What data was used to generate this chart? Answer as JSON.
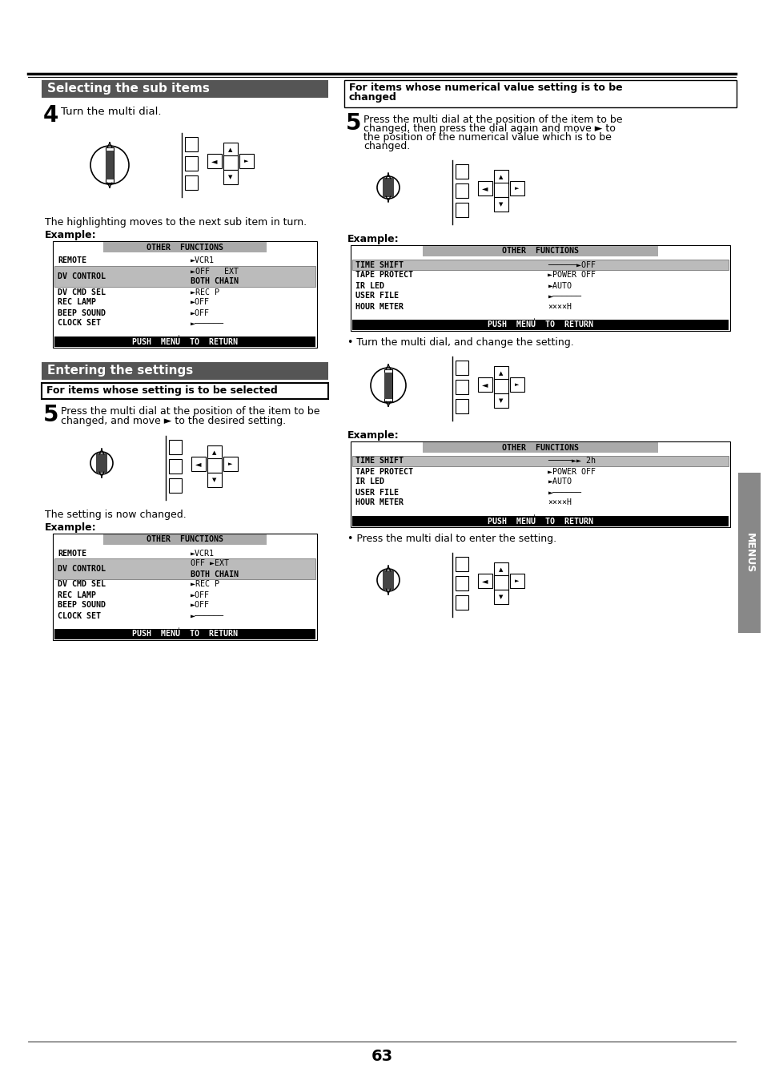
{
  "page_background": "#ffffff",
  "page_number": "63",
  "sidebar_label": "MENUS",
  "sidebar_color": "#888888",
  "section1_title": "Selecting the sub items",
  "section1_title_bg": "#555555",
  "section1_title_color": "#ffffff",
  "step4_label": "4",
  "step4_text": "Turn the multi dial.",
  "step4_note": "The highlighting moves to the next sub item in turn.",
  "step4_example_label": "Example:",
  "menu1_title": "OTHER  FUNCTIONS",
  "menu1_title_bg": "#aaaaaa",
  "menu1_rows": [
    {
      "label": "REMOTE",
      "value": "►VCR1",
      "highlight": false,
      "val2": ""
    },
    {
      "label": "DV CONTROL",
      "value": "►OFF   EXT",
      "highlight": true,
      "val2": "BOTH CHAIN"
    },
    {
      "label": "DV CMD SEL",
      "value": "►REC P",
      "highlight": false,
      "val2": ""
    },
    {
      "label": "REC LAMP",
      "value": "►OFF",
      "highlight": false,
      "val2": ""
    },
    {
      "label": "BEEP SOUND",
      "value": "►OFF",
      "highlight": false,
      "val2": ""
    },
    {
      "label": "CLOCK SET",
      "value": "►──────",
      "highlight": false,
      "val2": ""
    }
  ],
  "menu1_footer": "PUSH  MENU  TO  RETURN",
  "section2_title": "Entering the settings",
  "section2_title_bg": "#555555",
  "section2_title_color": "#ffffff",
  "subsection2a_title": "For items whose setting is to be selected",
  "step5a_label": "5",
  "step5a_text1": "Press the multi dial at the position of the item to be",
  "step5a_text2": "changed, and move ► to the desired setting.",
  "step5a_note": "The setting is now changed.",
  "step5a_example_label": "Example:",
  "menu2_title": "OTHER  FUNCTIONS",
  "menu2_title_bg": "#aaaaaa",
  "menu2_rows": [
    {
      "label": "REMOTE",
      "value": "►VCR1",
      "highlight": false,
      "val2": ""
    },
    {
      "label": "DV CONTROL",
      "value": "OFF ►EXT",
      "highlight": true,
      "val2": "BOTH CHAIN"
    },
    {
      "label": "DV CMD SEL",
      "value": "►REC P",
      "highlight": false,
      "val2": ""
    },
    {
      "label": "REC LAMP",
      "value": "►OFF",
      "highlight": false,
      "val2": ""
    },
    {
      "label": "BEEP SOUND",
      "value": "►OFF",
      "highlight": false,
      "val2": ""
    },
    {
      "label": "CLOCK SET",
      "value": "►──────",
      "highlight": false,
      "val2": ""
    }
  ],
  "menu2_footer": "PUSH  MENU  TO  RETURN",
  "right_title_line1": "For items whose numerical value setting is to be",
  "right_title_line2": "changed",
  "step5b_label": "5",
  "step5b_text1": "Press the multi dial at the position of the item to be",
  "step5b_text2": "changed, then press the dial again and move ► to",
  "step5b_text3": "the position of the numerical value which is to be",
  "step5b_text4": "changed.",
  "step5b_example_label": "Example:",
  "menu3_title": "OTHER  FUNCTIONS",
  "menu3_title_bg": "#aaaaaa",
  "menu3_rows": [
    {
      "label": "TIME SHIFT",
      "value": "──────►OFF",
      "highlight": true,
      "val2": ""
    },
    {
      "label": "TAPE PROTECT",
      "value": "►POWER OFF",
      "highlight": false,
      "val2": ""
    },
    {
      "label": "IR LED",
      "value": "►AUTO",
      "highlight": false,
      "val2": ""
    },
    {
      "label": "USER FILE",
      "value": "►──────",
      "highlight": false,
      "val2": ""
    },
    {
      "label": "HOUR METER",
      "value": "××××H",
      "highlight": false,
      "val2": ""
    }
  ],
  "menu3_footer": "PUSH  MENU  TO  RETURN",
  "bullet1": "• Turn the multi dial, and change the setting.",
  "menu4_example_label": "Example:",
  "menu4_title": "OTHER  FUNCTIONS",
  "menu4_title_bg": "#aaaaaa",
  "menu4_rows": [
    {
      "label": "TIME SHIFT",
      "value": "─────►► 2h",
      "highlight": true,
      "val2": ""
    },
    {
      "label": "TAPE PROTECT",
      "value": "►POWER OFF",
      "highlight": false,
      "val2": ""
    },
    {
      "label": "IR LED",
      "value": "►AUTO",
      "highlight": false,
      "val2": ""
    },
    {
      "label": "USER FILE",
      "value": "►──────",
      "highlight": false,
      "val2": ""
    },
    {
      "label": "HOUR METER",
      "value": "××××H",
      "highlight": false,
      "val2": ""
    }
  ],
  "menu4_footer": "PUSH  MENU  TO  RETURN",
  "bullet2": "• Press the multi dial to enter the setting."
}
